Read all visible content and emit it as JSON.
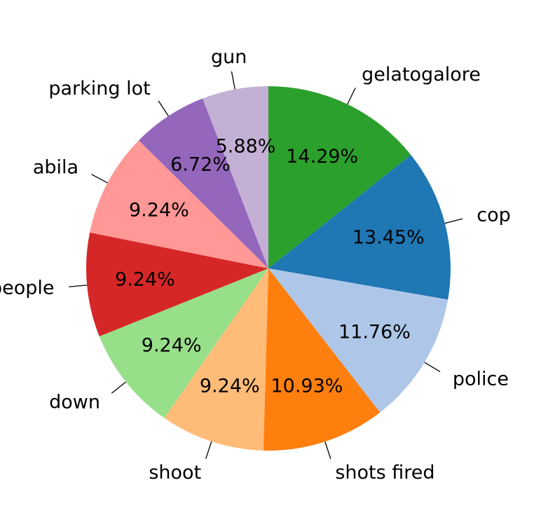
{
  "chart_data": {
    "type": "pie",
    "title": "",
    "start": "top",
    "direction": "clockwise",
    "slices": [
      {
        "label": "gelatogalore",
        "value": 14.29,
        "pct_label": "14.29%",
        "color": "#2ca02c"
      },
      {
        "label": "cop",
        "value": 13.45,
        "pct_label": "13.45%",
        "color": "#1f77b4"
      },
      {
        "label": "police",
        "value": 11.76,
        "pct_label": "11.76%",
        "color": "#aec7e8"
      },
      {
        "label": "shots fired",
        "value": 10.93,
        "pct_label": "10.93%",
        "color": "#ff7f0e"
      },
      {
        "label": "shoot",
        "value": 9.24,
        "pct_label": "9.24%",
        "color": "#ffbb78"
      },
      {
        "label": "down",
        "value": 9.24,
        "pct_label": "9.24%",
        "color": "#98df8a"
      },
      {
        "label": "people",
        "value": 9.24,
        "pct_label": "9.24%",
        "color": "#d62728"
      },
      {
        "label": "abila",
        "value": 9.24,
        "pct_label": "9.24%",
        "color": "#ff9896"
      },
      {
        "label": "parking lot",
        "value": 6.72,
        "pct_label": "6.72%",
        "color": "#9467bd"
      },
      {
        "label": "gun",
        "value": 5.88,
        "pct_label": "5.88%",
        "color": "#c5b0d5"
      }
    ]
  }
}
